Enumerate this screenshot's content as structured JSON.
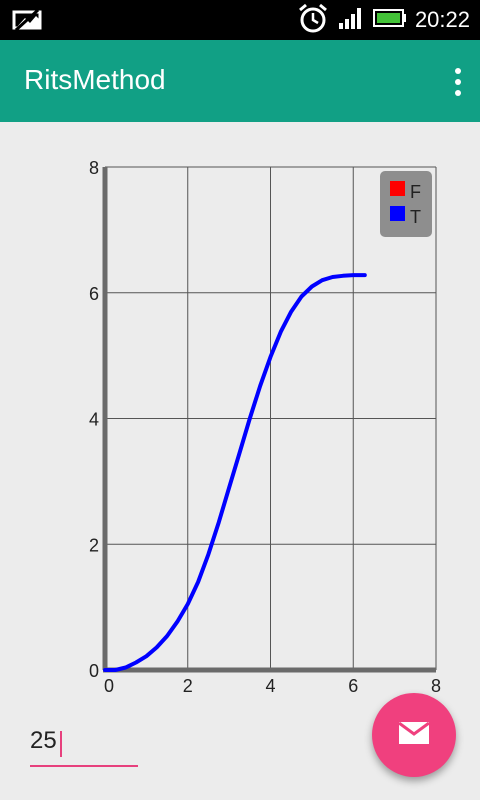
{
  "status_bar": {
    "time": "20:22",
    "icons": [
      "notification-image-icon",
      "alarm-clock-icon",
      "signal-bars-icon",
      "battery-icon"
    ]
  },
  "app_bar": {
    "title": "RitsMethod",
    "menu_icon": "more-vert-icon"
  },
  "chart_data": {
    "type": "line",
    "xlim": [
      0,
      8
    ],
    "ylim": [
      0,
      8
    ],
    "x_ticks": [
      "0",
      "2",
      "4",
      "6",
      "8"
    ],
    "y_ticks": [
      "0",
      "2",
      "4",
      "6",
      "8"
    ],
    "grid": true,
    "legend_position": "top-right",
    "legend": [
      {
        "name": "F",
        "color": "#ff0000"
      },
      {
        "name": "T",
        "color": "#0000ff"
      }
    ],
    "series": [
      {
        "name": "T",
        "color": "#0000ff",
        "x": [
          0,
          0.25,
          0.5,
          0.75,
          1.0,
          1.25,
          1.5,
          1.75,
          2.0,
          2.25,
          2.5,
          2.75,
          3.0,
          3.25,
          3.5,
          3.75,
          4.0,
          4.25,
          4.5,
          4.75,
          5.0,
          5.25,
          5.5,
          5.75,
          6.0,
          6.28
        ],
        "y": [
          0,
          0,
          0.04,
          0.12,
          0.22,
          0.36,
          0.54,
          0.77,
          1.05,
          1.4,
          1.84,
          2.35,
          2.9,
          3.45,
          4.0,
          4.52,
          4.98,
          5.38,
          5.7,
          5.94,
          6.1,
          6.2,
          6.25,
          6.27,
          6.28,
          6.28
        ]
      }
    ]
  },
  "input": {
    "value": "25"
  },
  "fab": {
    "icon": "email-icon"
  }
}
